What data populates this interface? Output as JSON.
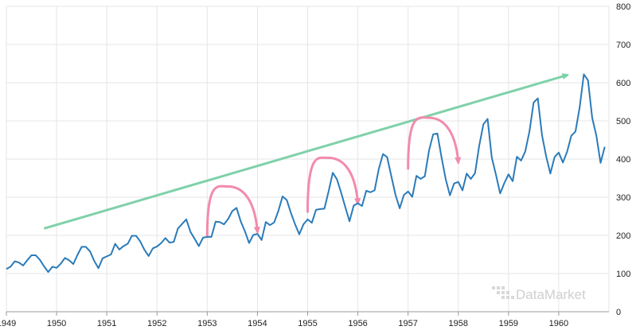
{
  "chart_data": {
    "type": "line",
    "title": "",
    "xlabel": "",
    "ylabel": "",
    "x_ticks": [
      "1949",
      "1950",
      "1951",
      "1952",
      "1953",
      "1954",
      "1955",
      "1956",
      "1957",
      "1958",
      "1959",
      "1960"
    ],
    "y_ticks": [
      0,
      100,
      200,
      300,
      400,
      500,
      600,
      700,
      800
    ],
    "ylim": [
      0,
      800
    ],
    "xlim": [
      "1949-01",
      "1960-12"
    ],
    "grid": true,
    "legend": "none",
    "watermark": "DataMarket",
    "series": [
      {
        "color": "#2b7bb9",
        "start": "1949-01",
        "frequency": "monthly",
        "values": [
          112,
          118,
          132,
          129,
          121,
          135,
          148,
          148,
          136,
          119,
          104,
          118,
          115,
          126,
          141,
          135,
          125,
          149,
          170,
          170,
          158,
          133,
          114,
          140,
          145,
          150,
          178,
          163,
          172,
          178,
          199,
          199,
          184,
          162,
          146,
          166,
          171,
          180,
          193,
          181,
          183,
          218,
          230,
          242,
          209,
          191,
          172,
          194,
          196,
          196,
          236,
          235,
          229,
          243,
          264,
          272,
          237,
          211,
          180,
          201,
          204,
          188,
          235,
          227,
          234,
          264,
          302,
          293,
          259,
          229,
          203,
          229,
          242,
          233,
          267,
          269,
          270,
          315,
          364,
          347,
          312,
          274,
          237,
          278,
          284,
          277,
          317,
          313,
          318,
          374,
          413,
          405,
          355,
          306,
          271,
          306,
          315,
          301,
          356,
          348,
          355,
          422,
          465,
          467,
          404,
          347,
          305,
          336,
          340,
          318,
          362,
          348,
          363,
          435,
          491,
          505,
          404,
          359,
          310,
          337,
          360,
          342,
          406,
          396,
          420,
          472,
          548,
          559,
          463,
          407,
          362,
          405,
          417,
          391,
          419,
          461,
          472,
          535,
          622,
          606,
          508,
          461,
          390,
          432
        ]
      }
    ],
    "annotations": {
      "trend_arrow": {
        "color": "#7fd1a9",
        "from": [
          "1949-10",
          218
        ],
        "to": [
          "1960-03",
          620
        ]
      },
      "seasonal_arrows": [
        {
          "color": "#f28bab",
          "from": [
            "1953-01",
            200
          ],
          "peak": [
            "1953-06",
            328
          ],
          "to": [
            "1954-01",
            210
          ]
        },
        {
          "color": "#f28bab",
          "from": [
            "1955-01",
            262
          ],
          "peak": [
            "1955-06",
            403
          ],
          "to": [
            "1956-01",
            285
          ]
        },
        {
          "color": "#f28bab",
          "from": [
            "1957-01",
            375
          ],
          "peak": [
            "1957-06",
            508
          ],
          "to": [
            "1958-01",
            392
          ]
        }
      ]
    }
  }
}
